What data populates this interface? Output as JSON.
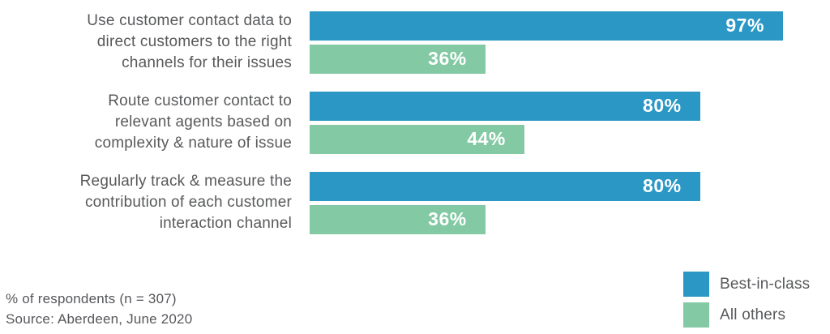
{
  "chart_data": {
    "type": "bar",
    "orientation": "horizontal",
    "title": "",
    "categories": [
      "Use customer contact data to\ndirect customers to the right\nchannels for their issues",
      "Route customer contact to\nrelevant agents based on\ncomplexity & nature of issue",
      "Regularly track & measure the\ncontribution of each customer\ninteraction channel"
    ],
    "series": [
      {
        "name": "Best-in-class",
        "color": "#2B97C5",
        "values": [
          97,
          80,
          80
        ]
      },
      {
        "name": "All others",
        "color": "#83C9A4",
        "values": [
          36,
          44,
          36
        ]
      }
    ],
    "value_suffix": "%",
    "xlim": [
      0,
      100
    ],
    "grid": false,
    "legend_position": "bottom-right",
    "value_labels": "inside-end"
  },
  "footer": {
    "note": "% of respondents (n = 307)",
    "source": "Source: Aberdeen, June 2020"
  },
  "colors": {
    "best_in_class": "#2B97C5",
    "all_others": "#83C9A4",
    "label_text": "#58595B",
    "value_text": "#FFFFFF",
    "background": "#FFFFFF"
  }
}
